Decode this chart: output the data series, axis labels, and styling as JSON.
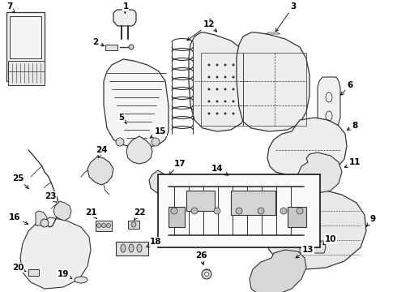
{
  "bg_color": "#ffffff",
  "line_color": "#333333",
  "fill_color": "#f2f2f2",
  "label_color": "#000000",
  "figsize": [
    4.9,
    3.6
  ],
  "dpi": 100
}
